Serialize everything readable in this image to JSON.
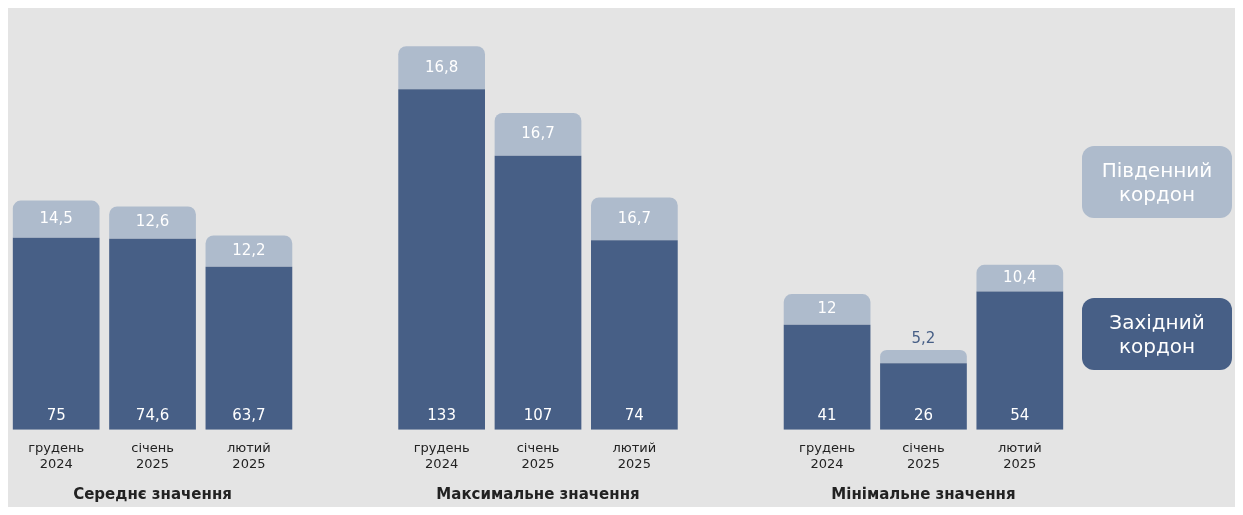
{
  "chart_data": {
    "type": "bar",
    "stacked": true,
    "legend": "right",
    "grid": false,
    "categories": [
      "грудень 2024",
      "січень 2025",
      "лютий 2025",
      null,
      "грудень 2024",
      "січень 2025",
      "лютий 2025",
      null,
      "грудень 2024",
      "січень 2025",
      "лютий 2025"
    ],
    "series": [
      {
        "name": "Західний кордон",
        "color": "#475f86",
        "values": [
          75,
          74.6,
          63.7,
          null,
          133,
          107,
          74,
          null,
          41,
          26,
          54
        ],
        "value_labels": [
          "75",
          "74,6",
          "63,7",
          null,
          "133",
          "107",
          "74",
          null,
          "41",
          "26",
          "54"
        ]
      },
      {
        "name": "Південний кордон",
        "color": "#aebbcc",
        "values": [
          14.5,
          12.6,
          12.2,
          null,
          16.8,
          16.7,
          16.7,
          null,
          12,
          5.2,
          10.4
        ],
        "value_labels": [
          "14,5",
          "12,6",
          "12,2",
          null,
          "16,8",
          "16,7",
          "16,7",
          null,
          "12",
          "5,2",
          "10,4"
        ]
      }
    ],
    "annotations": [
      "Середнє значення",
      "Максимальне значення",
      "Мінімальне значення"
    ]
  }
}
